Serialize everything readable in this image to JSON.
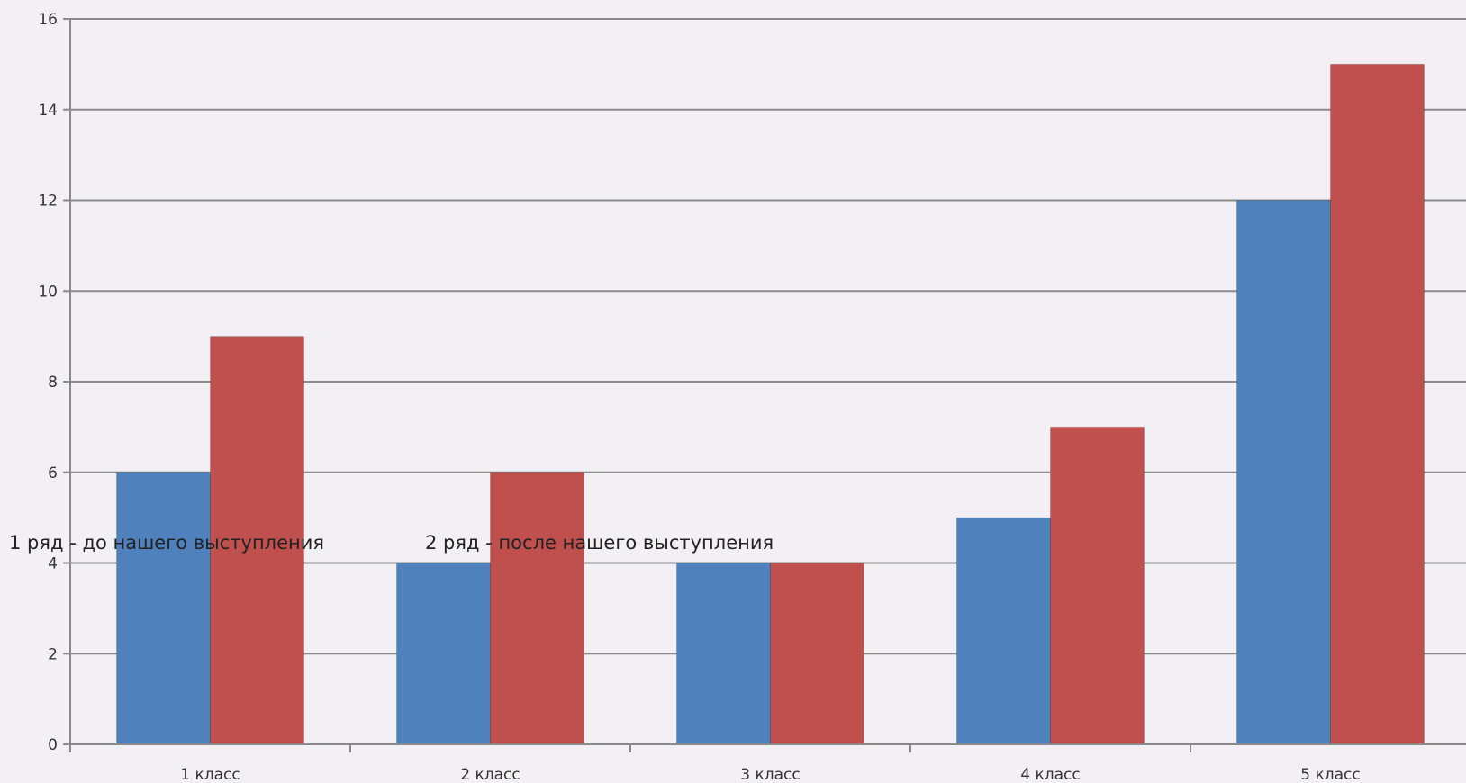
{
  "chart_data": {
    "type": "bar",
    "categories": [
      "1 класс",
      "2 класс",
      "3 класс",
      "4 класс",
      "5 класс"
    ],
    "series": [
      {
        "name": "1 ряд - до нашего выступления",
        "color": "#4f81bd",
        "values": [
          6,
          4,
          4,
          5,
          12
        ]
      },
      {
        "name": "2 ряд - после нашего выступления",
        "color": "#c0504d",
        "values": [
          9,
          6,
          4,
          7,
          15
        ]
      }
    ],
    "ylim": [
      0,
      16
    ],
    "yticks": [
      0,
      2,
      4,
      6,
      8,
      10,
      12,
      14,
      16
    ],
    "grid": true,
    "legend_position": "inside, near 4"
  }
}
